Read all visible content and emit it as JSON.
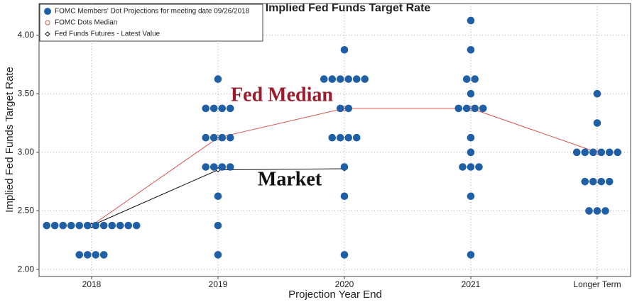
{
  "chart_data": {
    "type": "dot",
    "title": "Implied Fed Funds Target Rate",
    "x_label": "Projection Year End",
    "y_label": "Implied Fed Funds Target Rate",
    "categories": [
      "2018",
      "2019",
      "2020",
      "2021",
      "Longer Term"
    ],
    "ylim": [
      1.94,
      4.27
    ],
    "yticks": [
      {
        "value": 2,
        "label": "2.00"
      },
      {
        "value": 2.5,
        "label": "2.50"
      },
      {
        "value": 3,
        "label": "3.00"
      },
      {
        "value": 3.5,
        "label": "3.50"
      },
      {
        "value": 4,
        "label": "4.00"
      }
    ],
    "grid": true,
    "legend": "top-left",
    "series": [
      {
        "name": "FOMC Members' Dot Projections for meeting date 09/26/2018",
        "color": "#1f5fa6",
        "style": "dots",
        "values": [
          [
            2.375,
            2.375,
            2.375,
            2.375,
            2.375,
            2.375,
            2.375,
            2.375,
            2.375,
            2.375,
            2.375,
            2.375,
            2.125,
            2.125,
            2.125,
            2.125
          ],
          [
            3.625,
            3.375,
            3.375,
            3.375,
            3.375,
            3.125,
            3.125,
            3.125,
            3.125,
            2.875,
            2.875,
            2.875,
            2.875,
            2.625,
            2.375,
            2.125
          ],
          [
            3.875,
            3.625,
            3.625,
            3.625,
            3.625,
            3.625,
            3.625,
            3.375,
            3.375,
            3.125,
            3.125,
            3.125,
            3.125,
            2.875,
            2.625,
            2.125
          ],
          [
            4.125,
            3.875,
            3.625,
            3.625,
            3.5,
            3.375,
            3.375,
            3.375,
            3.375,
            3.125,
            3,
            2.875,
            2.875,
            2.875,
            2.625,
            2.125
          ],
          [
            3.5,
            3.25,
            3,
            3,
            3,
            3,
            3,
            3,
            2.75,
            2.75,
            2.75,
            2.75,
            2.5,
            2.5,
            2.5
          ]
        ]
      },
      {
        "name": "FOMC Dots Median",
        "color": "#d9534f",
        "style": "line-circle",
        "values": [
          2.375,
          3.125,
          3.375,
          3.375,
          3
        ]
      },
      {
        "name": "Fed Funds Futures - Latest Value",
        "color": "#111111",
        "style": "line-diamond",
        "values": [
          2.375,
          2.85,
          2.86,
          null,
          null
        ]
      }
    ],
    "annotations": [
      {
        "text": "Fed Median",
        "color": "#9b1c2c"
      },
      {
        "text": "Market",
        "color": "#111111"
      }
    ]
  }
}
